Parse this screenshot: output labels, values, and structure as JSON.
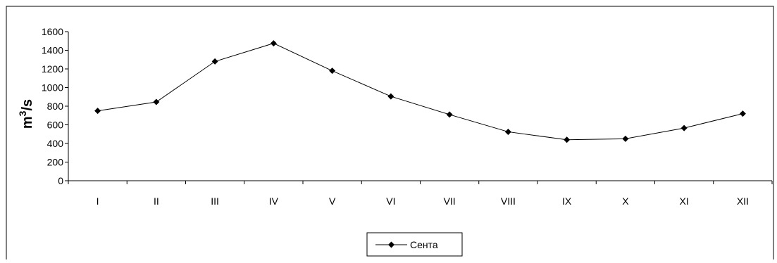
{
  "chart_data": {
    "type": "line",
    "categories": [
      "I",
      "II",
      "III",
      "IV",
      "V",
      "VI",
      "VII",
      "VIII",
      "IX",
      "X",
      "XI",
      "XII"
    ],
    "series": [
      {
        "name": "Сента",
        "values": [
          750,
          845,
          1280,
          1475,
          1180,
          905,
          710,
          525,
          440,
          450,
          565,
          720
        ],
        "color": "#000000",
        "marker": "diamond"
      }
    ],
    "ylabel": "m³/s",
    "ylabel_base": "m",
    "ylabel_sup": "3",
    "ylabel_unit": "/s",
    "ylim": [
      0,
      1600
    ],
    "yticks": [
      0,
      200,
      400,
      600,
      800,
      1000,
      1200,
      1400,
      1600
    ],
    "grid": false,
    "legend_position": "bottom-center"
  }
}
